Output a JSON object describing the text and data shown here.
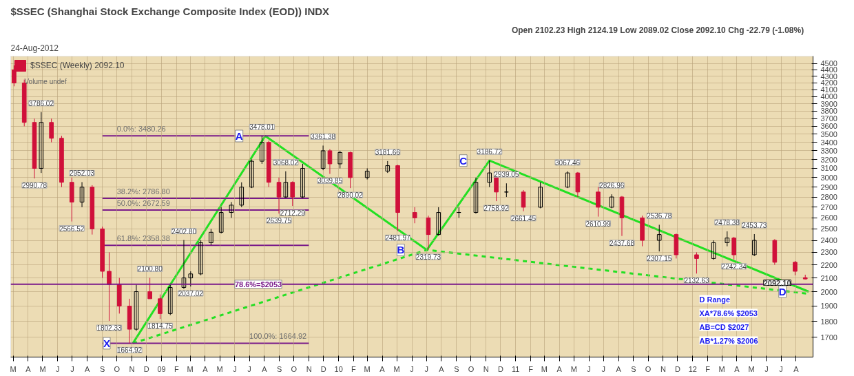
{
  "chart_data": {
    "type": "candlestick",
    "title": "$SSEC (Shanghai Stock Exchange Composite Index (EOD)) INDX",
    "subtitle": "24-Aug-2012",
    "series": [
      {
        "name": "$SSEC (Weekly) 2092.10",
        "colors": [
          "#d0103a",
          "#d0103a",
          "#d0103a",
          "#000000",
          "#d0103a",
          "#d0103a",
          "#d0103a",
          "#000000",
          "#d0103a",
          "#d0103a",
          "#d0103a",
          "#d0103a",
          "#d0103a",
          "#000000",
          "#d0103a",
          "#d0103a",
          "#000000",
          "#000000",
          "#000000",
          "#000000",
          "#000000",
          "#000000",
          "#000000",
          "#000000",
          "#000000",
          "#000000",
          "#d0103a",
          "#d0103a",
          "#000000",
          "#d0103a",
          "#000000",
          "#000000",
          "#d0103a",
          "#000000",
          "#d0103a",
          "#000000",
          "#000000",
          "#d0103a",
          "#d0103a",
          "#d0103a",
          "#000000",
          "#000000",
          "#000000",
          "#000000",
          "#d0103a",
          "#000000",
          "#d0103a",
          "#000000",
          "#000000",
          "#d0103a",
          "#d0103a",
          "#000000",
          "#d0103a",
          "#d0103a",
          "#000000",
          "#d0103a",
          "#d0103a",
          "#000000",
          "#000000",
          "#d0103a",
          "#000000",
          "#d0103a",
          "#d0103a",
          "#d0103a"
        ],
        "x": [
          "2008-03-03",
          "2008-03-24",
          "2008-04-14",
          "2008-04-28",
          "2008-05-19",
          "2008-06-09",
          "2008-06-30",
          "2008-07-21",
          "2008-08-11",
          "2008-09-01",
          "2008-09-15",
          "2008-10-06",
          "2008-10-27",
          "2008-11-10",
          "2008-12-08",
          "2008-12-29",
          "2009-01-19",
          "2009-02-16",
          "2009-03-02",
          "2009-03-23",
          "2009-04-13",
          "2009-05-04",
          "2009-05-25",
          "2009-06-15",
          "2009-07-06",
          "2009-07-27",
          "2009-08-10",
          "2009-08-31",
          "2009-09-14",
          "2009-09-28",
          "2009-10-19",
          "2009-11-30",
          "2009-12-14",
          "2010-01-04",
          "2010-01-25",
          "2010-03-01",
          "2010-04-12",
          "2010-05-03",
          "2010-06-07",
          "2010-07-05",
          "2010-07-26",
          "2010-09-06",
          "2010-10-11",
          "2010-11-08",
          "2010-11-22",
          "2010-12-13",
          "2011-01-17",
          "2011-02-21",
          "2011-04-18",
          "2011-05-09",
          "2011-06-20",
          "2011-07-18",
          "2011-08-08",
          "2011-09-19",
          "2011-10-24",
          "2011-11-28",
          "2012-01-09",
          "2012-02-13",
          "2012-03-12",
          "2012-03-26",
          "2012-05-07",
          "2012-06-18",
          "2012-07-30",
          "2012-08-20"
        ],
        "ohlc": [
          [
            4400,
            4470,
            4150,
            4200
          ],
          [
            4200,
            4250,
            3600,
            3650
          ],
          [
            3650,
            3700,
            2990.78,
            3100
          ],
          [
            3100,
            3786.02,
            3050,
            3650
          ],
          [
            3650,
            3700,
            3400,
            3450
          ],
          [
            3450,
            3480,
            2900,
            2950
          ],
          [
            2950,
            3000,
            2566.52,
            2750
          ],
          [
            2750,
            2952.03,
            2700,
            2900
          ],
          [
            2900,
            2920,
            2450,
            2500
          ],
          [
            2500,
            2520,
            2100,
            2150
          ],
          [
            2150,
            2300,
            1802.33,
            2050
          ],
          [
            2050,
            2100,
            1850,
            1900
          ],
          [
            1900,
            1950,
            1664.92,
            1750
          ],
          [
            1750,
            2050,
            1740,
            2000
          ],
          [
            2000,
            2100.8,
            1950,
            1950
          ],
          [
            1950,
            1980,
            1814.75,
            1850
          ],
          [
            1850,
            2050,
            1840,
            2030
          ],
          [
            2030,
            2402.8,
            2020,
            2100
          ],
          [
            2100,
            2150,
            2037.02,
            2130
          ],
          [
            2130,
            2400,
            2120,
            2380
          ],
          [
            2380,
            2500,
            2360,
            2470
          ],
          [
            2470,
            2700,
            2460,
            2650
          ],
          [
            2650,
            2750,
            2600,
            2720
          ],
          [
            2720,
            2950,
            2700,
            2900
          ],
          [
            2900,
            3200,
            2890,
            3180
          ],
          [
            3180,
            3478.01,
            3150,
            3400
          ],
          [
            3400,
            3420,
            2900,
            2950
          ],
          [
            2950,
            3000,
            2639.75,
            2800
          ],
          [
            2800,
            3068.02,
            2790,
            2950
          ],
          [
            2950,
            2960,
            2712.29,
            2800
          ],
          [
            2800,
            3150,
            2790,
            3100
          ],
          [
            3100,
            3361.38,
            3080,
            3300
          ],
          [
            3300,
            3320,
            3039.85,
            3150
          ],
          [
            3150,
            3300,
            3100,
            3280
          ],
          [
            3280,
            3290,
            2890.02,
            3000
          ],
          [
            3000,
            3100,
            2980,
            3070
          ],
          [
            3070,
            3181.66,
            3050,
            3130
          ],
          [
            3130,
            3140,
            2481.97,
            2650
          ],
          [
            2650,
            2700,
            2550,
            2600
          ],
          [
            2600,
            2620,
            2319.73,
            2450
          ],
          [
            2450,
            2700,
            2440,
            2650
          ],
          [
            2650,
            2700,
            2600,
            2650
          ],
          [
            2650,
            3000,
            2640,
            2950
          ],
          [
            2950,
            3186.72,
            2900,
            3050
          ],
          [
            3050,
            3060,
            2758.92,
            2850
          ],
          [
            2850,
            2939.05,
            2800,
            2850
          ],
          [
            2850,
            2870,
            2661.45,
            2700
          ],
          [
            2700,
            2950,
            2690,
            2900
          ],
          [
            2900,
            3067.46,
            2890,
            3050
          ],
          [
            3050,
            3060,
            2800,
            2850
          ],
          [
            2850,
            2900,
            2610.99,
            2700
          ],
          [
            2700,
            2826.96,
            2690,
            2800
          ],
          [
            2800,
            2810,
            2437.68,
            2600
          ],
          [
            2600,
            2620,
            2350,
            2400
          ],
          [
            2400,
            2536.78,
            2307.15,
            2450
          ],
          [
            2450,
            2460,
            2250,
            2280
          ],
          [
            2280,
            2300,
            2132.63,
            2250
          ],
          [
            2250,
            2400,
            2240,
            2380
          ],
          [
            2380,
            2478.38,
            2350,
            2420
          ],
          [
            2420,
            2430,
            2242.34,
            2280
          ],
          [
            2280,
            2453.73,
            2270,
            2400
          ],
          [
            2400,
            2410,
            2200,
            2220
          ],
          [
            2220,
            2230,
            2120,
            2150
          ],
          [
            2102.23,
            2124.19,
            2089.02,
            2092.1
          ]
        ]
      },
      {
        "type": "line",
        "color": "#22e022",
        "line_style": "solid",
        "x": [
          "2008-11-03",
          "2009-08-03",
          "2010-07-02",
          "2010-11-08",
          "2012-08-27"
        ],
        "values": [
          1664.92,
          3478.01,
          2319.73,
          3186.72,
          2000
        ]
      },
      {
        "type": "line",
        "color": "#22e022",
        "line_style": "dashed",
        "x": [
          "2008-11-03",
          "2010-07-02",
          "2012-08-27"
        ],
        "values": [
          1664.92,
          2319.73,
          1985
        ]
      },
      {
        "type": "line",
        "color": "#7a1a8a",
        "line_style": "solid",
        "x": [
          "2008-09-01",
          "2009-11-01"
        ],
        "values": [
          3480.26,
          3480.26
        ]
      },
      {
        "type": "line",
        "color": "#7a1a8a",
        "line_style": "solid",
        "x": [
          "2008-09-01",
          "2009-11-01"
        ],
        "values": [
          2786.8,
          2786.8
        ]
      },
      {
        "type": "line",
        "color": "#7a1a8a",
        "line_style": "solid",
        "x": [
          "2008-09-01",
          "2009-11-01"
        ],
        "values": [
          2672.59,
          2672.59
        ]
      },
      {
        "type": "line",
        "color": "#7a1a8a",
        "line_style": "solid",
        "x": [
          "2008-09-01",
          "2009-11-01"
        ],
        "values": [
          2358.38,
          2358.38
        ]
      },
      {
        "type": "line",
        "color": "#7a1a8a",
        "line_style": "solid",
        "x": [
          "2008-09-01",
          "2009-11-01"
        ],
        "values": [
          1664.92,
          1664.92
        ]
      }
    ],
    "ref_lines": [
      {
        "axis": "y",
        "value": 2053,
        "label": "78.6%=$2053",
        "color": "#7a1a8a"
      }
    ],
    "annotations": [
      "Open 2102.23  High 2124.19  Low 2089.02  Close 2092.10  Chg -22.79 (-1.08%)",
      "Volume undef",
      "D Range",
      "XA*78.6% $2053",
      "AB=CD $2027",
      "AB*1.27% $2006",
      "2092.10",
      {
        "text": "3786.02",
        "x": "2008-04-28",
        "y": 3786.02
      },
      {
        "text": "2990.78",
        "x": "2008-04-14",
        "y": 2990.78
      },
      {
        "text": "2952.03",
        "x": "2008-07-21",
        "y": 2952.03
      },
      {
        "text": "2566.52",
        "x": "2008-06-30",
        "y": 2566.52
      },
      {
        "text": "1802.33",
        "x": "2008-09-15",
        "y": 1802.33
      },
      {
        "text": "1664.92",
        "x": "2008-10-27",
        "y": 1664.92
      },
      {
        "text": "2100.80",
        "x": "2008-12-08",
        "y": 2100.8
      },
      {
        "text": "1814.75",
        "x": "2008-12-29",
        "y": 1814.75
      },
      {
        "text": "2402.80",
        "x": "2009-02-16",
        "y": 2402.8
      },
      {
        "text": "2037.02",
        "x": "2009-03-02",
        "y": 2037.02
      },
      {
        "text": "3478.01",
        "x": "2009-07-27",
        "y": 3478.01
      },
      {
        "text": "2639.75",
        "x": "2009-08-31",
        "y": 2639.75
      },
      {
        "text": "3068.02",
        "x": "2009-09-14",
        "y": 3068.02
      },
      {
        "text": "2712.29",
        "x": "2009-09-28",
        "y": 2712.29
      },
      {
        "text": "3361.38",
        "x": "2009-11-30",
        "y": 3361.38
      },
      {
        "text": "3039.85",
        "x": "2009-12-14",
        "y": 3039.85
      },
      {
        "text": "2890.02",
        "x": "2010-01-25",
        "y": 2890.02
      },
      {
        "text": "3181.66",
        "x": "2010-04-12",
        "y": 3181.66
      },
      {
        "text": "2481.97",
        "x": "2010-05-03",
        "y": 2481.97
      },
      {
        "text": "2319.73",
        "x": "2010-07-05",
        "y": 2319.73
      },
      {
        "text": "3186.72",
        "x": "2010-11-08",
        "y": 3186.72
      },
      {
        "text": "2758.92",
        "x": "2010-11-22",
        "y": 2758.92
      },
      {
        "text": "2939.05",
        "x": "2010-12-13",
        "y": 2939.05
      },
      {
        "text": "2661.45",
        "x": "2011-01-17",
        "y": 2661.45
      },
      {
        "text": "3067.46",
        "x": "2011-04-18",
        "y": 3067.46
      },
      {
        "text": "2610.99",
        "x": "2011-06-20",
        "y": 2610.99
      },
      {
        "text": "2826.96",
        "x": "2011-07-18",
        "y": 2826.96
      },
      {
        "text": "2437.68",
        "x": "2011-08-08",
        "y": 2437.68
      },
      {
        "text": "2536.78",
        "x": "2011-10-24",
        "y": 2536.78
      },
      {
        "text": "2307.15",
        "x": "2011-10-24",
        "y": 2307.15
      },
      {
        "text": "2132.63",
        "x": "2012-01-09",
        "y": 2132.63
      },
      {
        "text": "2478.38",
        "x": "2012-03-12",
        "y": 2478.38
      },
      {
        "text": "2242.34",
        "x": "2012-03-26",
        "y": 2242.34
      },
      {
        "text": "2453.73",
        "x": "2012-05-07",
        "y": 2453.73
      },
      {
        "text": "X",
        "x": "2008-11-03",
        "y": 1664.92
      },
      {
        "text": "A",
        "x": "2009-08-03",
        "y": 3478.01
      },
      {
        "text": "B",
        "x": "2010-07-02",
        "y": 2319.73
      },
      {
        "text": "C",
        "x": "2010-11-08",
        "y": 3186.72
      },
      {
        "text": "D",
        "x": "2012-08-27",
        "y": 2000
      },
      {
        "text": "0.0%: 3480.26",
        "x": "2008-10-01",
        "y": 3480.26
      },
      {
        "text": "38.2%: 2786.80",
        "x": "2008-10-01",
        "y": 2786.8
      },
      {
        "text": "50.0%: 2672.59",
        "x": "2008-10-01",
        "y": 2672.59
      },
      {
        "text": "61.8%: 2358.38",
        "x": "2008-10-01",
        "y": 2358.38
      },
      {
        "text": "100.0%: 1664.92",
        "x": "2009-07-01",
        "y": 1664.92
      }
    ],
    "log": true,
    "ylim": [
      1585,
      4620
    ],
    "yticks": [
      1700,
      1800,
      1900,
      2000,
      2100,
      2200,
      2300,
      2400,
      2500,
      2600,
      2700,
      2800,
      2900,
      3000,
      3100,
      3200,
      3300,
      3400,
      3500,
      3600,
      3700,
      3800,
      3900,
      4000,
      4100,
      4200,
      4300,
      4400,
      4500
    ],
    "xlim": [
      "2008-02-25",
      "2012-09-05"
    ],
    "xticks": [
      {
        "value": "2008-03",
        "label": "M"
      },
      {
        "value": "2008-04",
        "label": "A"
      },
      {
        "value": "2008-05",
        "label": "M"
      },
      {
        "value": "2008-06",
        "label": "J"
      },
      {
        "value": "2008-07",
        "label": "J"
      },
      {
        "value": "2008-08",
        "label": "A"
      },
      {
        "value": "2008-09",
        "label": "S"
      },
      {
        "value": "2008-10",
        "label": "O"
      },
      {
        "value": "2008-11",
        "label": "N"
      },
      {
        "value": "2008-12",
        "label": "D"
      },
      {
        "value": "2009-01",
        "label": "09"
      },
      {
        "value": "2009-02",
        "label": "F"
      },
      {
        "value": "2009-03",
        "label": "M"
      },
      {
        "value": "2009-04",
        "label": "A"
      },
      {
        "value": "2009-05",
        "label": "M"
      },
      {
        "value": "2009-06",
        "label": "J"
      },
      {
        "value": "2009-07",
        "label": "J"
      },
      {
        "value": "2009-08",
        "label": "A"
      },
      {
        "value": "2009-09",
        "label": "S"
      },
      {
        "value": "2009-10",
        "label": "O"
      },
      {
        "value": "2009-11",
        "label": "N"
      },
      {
        "value": "2009-12",
        "label": "D"
      },
      {
        "value": "2010-01",
        "label": "10"
      },
      {
        "value": "2010-02",
        "label": "F"
      },
      {
        "value": "2010-03",
        "label": "M"
      },
      {
        "value": "2010-04",
        "label": "A"
      },
      {
        "value": "2010-05",
        "label": "M"
      },
      {
        "value": "2010-06",
        "label": "J"
      },
      {
        "value": "2010-07",
        "label": "J"
      },
      {
        "value": "2010-08",
        "label": "A"
      },
      {
        "value": "2010-09",
        "label": "S"
      },
      {
        "value": "2010-10",
        "label": "O"
      },
      {
        "value": "2010-11",
        "label": "N"
      },
      {
        "value": "2010-12",
        "label": "D"
      },
      {
        "value": "2011-01",
        "label": "11"
      },
      {
        "value": "2011-02",
        "label": "F"
      },
      {
        "value": "2011-03",
        "label": "M"
      },
      {
        "value": "2011-04",
        "label": "A"
      },
      {
        "value": "2011-05",
        "label": "M"
      },
      {
        "value": "2011-06",
        "label": "J"
      },
      {
        "value": "2011-07",
        "label": "J"
      },
      {
        "value": "2011-08",
        "label": "A"
      },
      {
        "value": "2011-09",
        "label": "S"
      },
      {
        "value": "2011-10",
        "label": "O"
      },
      {
        "value": "2011-11",
        "label": "N"
      },
      {
        "value": "2011-12",
        "label": "D"
      },
      {
        "value": "2012-01",
        "label": "12"
      },
      {
        "value": "2012-02",
        "label": "F"
      },
      {
        "value": "2012-03",
        "label": "M"
      },
      {
        "value": "2012-04",
        "label": "A"
      },
      {
        "value": "2012-05",
        "label": "M"
      },
      {
        "value": "2012-06",
        "label": "J"
      },
      {
        "value": "2012-07",
        "label": "J"
      },
      {
        "value": "2012-08",
        "label": "A"
      }
    ],
    "grid": true,
    "legend": "top left"
  }
}
